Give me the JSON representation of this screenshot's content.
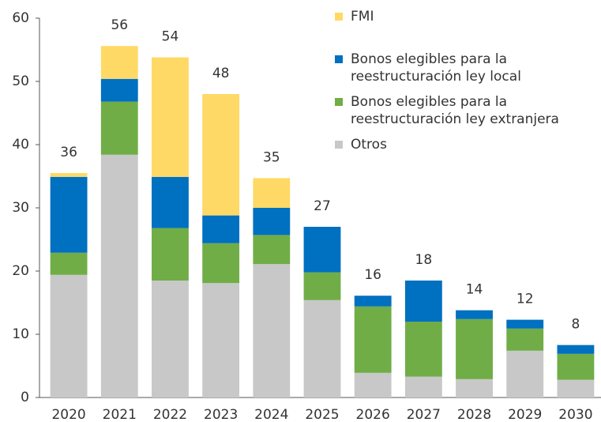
{
  "chart_data": {
    "type": "stacked_bar",
    "categories": [
      "2020",
      "2021",
      "2022",
      "2023",
      "2024",
      "2025",
      "2026",
      "2027",
      "2028",
      "2029",
      "2030"
    ],
    "series": [
      {
        "name": "Otros",
        "color": "#c8c8c8",
        "values": [
          19.4,
          38.4,
          18.5,
          18.1,
          21.1,
          15.4,
          3.9,
          3.3,
          2.9,
          7.4,
          2.8
        ]
      },
      {
        "name": "Bonos elegibles para la reestructuración ley extranjera",
        "color": "#70ad47",
        "values": [
          3.5,
          8.4,
          8.3,
          6.3,
          4.6,
          4.4,
          10.5,
          8.7,
          9.5,
          3.5,
          4.1
        ]
      },
      {
        "name": "Bonos elegibles para la reestructuración ley local",
        "color": "#0070c0",
        "values": [
          12.0,
          3.6,
          8.1,
          4.4,
          4.3,
          7.2,
          1.7,
          6.5,
          1.4,
          1.4,
          1.4
        ]
      },
      {
        "name": "FMI",
        "color": "#ffd966",
        "values": [
          0.6,
          5.2,
          18.9,
          19.2,
          4.7,
          0,
          0,
          0,
          0,
          0,
          0
        ]
      }
    ],
    "totals": [
      36,
      56,
      54,
      48,
      35,
      27,
      16,
      18,
      14,
      12,
      8
    ],
    "ylim": [
      0,
      60
    ],
    "yticks": [
      0,
      10,
      20,
      30,
      40,
      50,
      60
    ]
  }
}
